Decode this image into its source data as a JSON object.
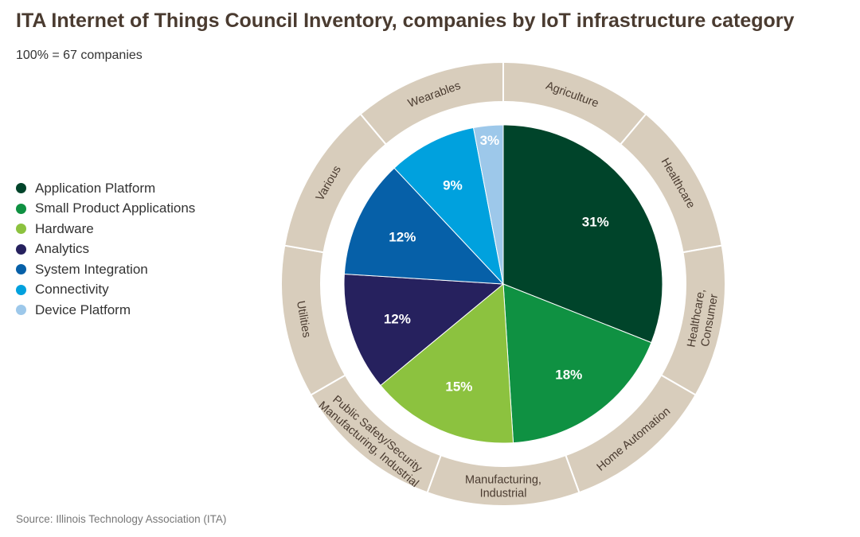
{
  "title": "ITA Internet of Things Council Inventory, companies by IoT infrastructure category",
  "subtitle": "100% = 67 companies",
  "source": "Source: Illinois Technology Association (ITA)",
  "chart_data": {
    "type": "pie",
    "categories": [
      "Application Platform",
      "Small Product Applications",
      "Hardware",
      "Analytics",
      "System Integration",
      "Connectivity",
      "Device Platform"
    ],
    "values": [
      31,
      18,
      15,
      12,
      12,
      9,
      3
    ],
    "value_labels": [
      "31%",
      "18%",
      "15%",
      "12%",
      "12%",
      "9%",
      "3%"
    ],
    "colors": [
      "#00442a",
      "#0f9142",
      "#8cc23f",
      "#26215e",
      "#0660a8",
      "#00a1de",
      "#9dc8ea"
    ],
    "legend_position": "left",
    "outer_ring": {
      "color": "#d8cdbc",
      "labels": [
        [
          "Agriculture"
        ],
        [
          "Healthcare"
        ],
        [
          "Healthcare,",
          "Consumer"
        ],
        [
          "Home Automation"
        ],
        [
          "Manufacturing,",
          "Industrial"
        ],
        [
          "Public Safety/Security",
          "Manufacturing, Industrial"
        ],
        [
          "Utilities"
        ],
        [
          "Various"
        ],
        [
          "Wearables"
        ]
      ]
    }
  }
}
